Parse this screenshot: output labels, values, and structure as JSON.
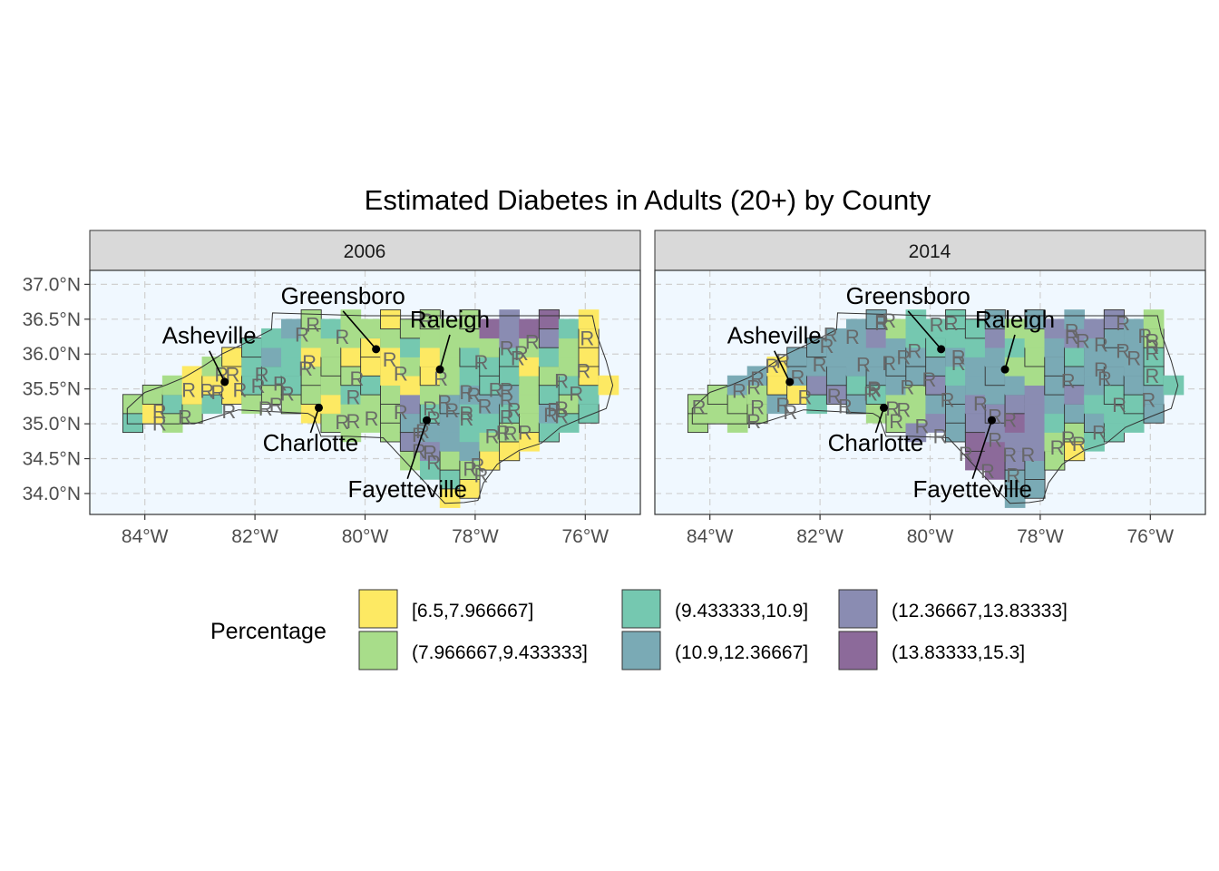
{
  "chart_data": {
    "type": "choropleth-map",
    "title": "Estimated Diabetes in Adults (20+) by County",
    "panels": [
      "2006",
      "2014"
    ],
    "x_ticks": [
      "84°W",
      "82°W",
      "80°W",
      "78°W",
      "76°W"
    ],
    "y_ticks": [
      "37.0°N",
      "36.5°N",
      "36.0°N",
      "35.5°N",
      "35.0°N",
      "34.5°N",
      "34.0°N"
    ],
    "xlim": [
      -85,
      -75
    ],
    "ylim": [
      33.7,
      37.2
    ],
    "grid": true,
    "panel_background": "#f0f8ff",
    "legend": {
      "title": "Percentage",
      "placement": "bottom",
      "items": [
        {
          "label": "[6.5,7.966667]",
          "color": "#fde963"
        },
        {
          "label": "(7.966667,9.433333]",
          "color": "#a8dd8a"
        },
        {
          "label": "(9.433333,10.9]",
          "color": "#75c8b0"
        },
        {
          "label": "(10.9,12.36667]",
          "color": "#7aaab5"
        },
        {
          "label": "(12.36667,13.83333]",
          "color": "#8a8cb2"
        },
        {
          "label": "(13.83333,15.3]",
          "color": "#8c6a9a"
        }
      ]
    },
    "cities": [
      {
        "name": "Greensboro",
        "lon": -79.8,
        "lat": 36.07
      },
      {
        "name": "Raleigh",
        "lon": -78.64,
        "lat": 35.78
      },
      {
        "name": "Asheville",
        "lon": -82.55,
        "lat": 35.6
      },
      {
        "name": "Charlotte",
        "lon": -80.84,
        "lat": 35.23
      },
      {
        "name": "Fayetteville",
        "lon": -78.88,
        "lat": 35.05
      }
    ],
    "marker_label": "R"
  }
}
